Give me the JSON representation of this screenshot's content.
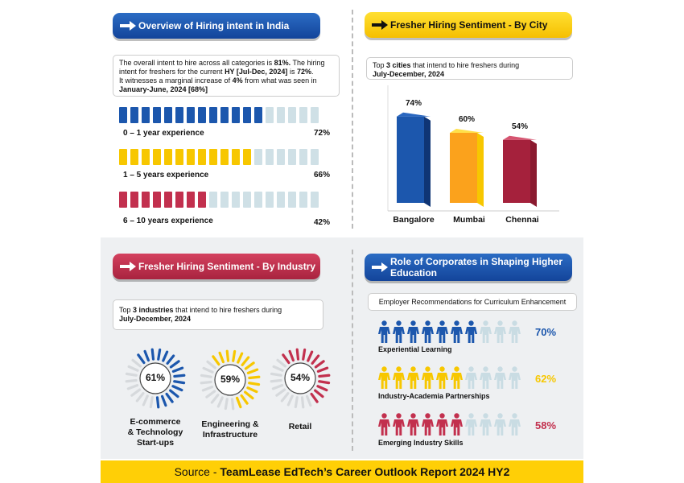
{
  "colors": {
    "blue": "#1c57ad",
    "yellow": "#f7c700",
    "red": "#c2304e",
    "orange": "#fba21c",
    "empty": "#cfe0e6"
  },
  "overview": {
    "title": "Overview of Hiring intent in India",
    "desc_line1_a": "The overall intent to hire across all categories is ",
    "desc_line1_b": "81%.",
    "desc_line1_c": " The hiring",
    "desc_line2_a": "intent for freshers for the current ",
    "desc_line2_b": "HY [Jul-Dec, 2024]",
    "desc_line2_c": " is ",
    "desc_line2_d": "72%",
    "desc_line2_e": ".",
    "desc_line3_a": "It witnesses a marginal increase of ",
    "desc_line3_b": "4%",
    "desc_line3_c": " from what was seen in",
    "desc_line4": "January-June, 2024 [68%]",
    "rows": [
      {
        "label": "0 – 1 year experience",
        "value": 72,
        "value_label": "72%",
        "filled": 13,
        "color": "#1c57ad"
      },
      {
        "label": "1 – 5 years experience",
        "value": 66,
        "value_label": "66%",
        "filled": 12,
        "color": "#f7c700"
      },
      {
        "label": "6 – 10 years experience",
        "value": 42,
        "value_label": "42%",
        "filled": 8,
        "color": "#c2304e"
      }
    ]
  },
  "city": {
    "title": "Fresher Hiring Sentiment - By City",
    "desc_a": "Top ",
    "desc_b": "3 cities",
    "desc_c": " that intend to hire freshers during",
    "desc_line2": "July-December, 2024"
  },
  "industry": {
    "title": "Fresher Hiring Sentiment - By Industry",
    "desc_a": "Top ",
    "desc_b": "3 industries",
    "desc_c": " that intend to hire freshers during",
    "desc_line2": "July-December, 2024",
    "items": [
      {
        "line1": "E-commerce",
        "line2": "& Technology",
        "line3": "Start-ups",
        "value": 61,
        "value_label": "61%",
        "color": "#1c57ad"
      },
      {
        "line1": "Engineering &",
        "line2": "Infrastructure",
        "line3": "",
        "value": 59,
        "value_label": "59%",
        "color": "#f7c700"
      },
      {
        "line1": "Retail",
        "line2": "",
        "line3": "",
        "value": 54,
        "value_label": "54%",
        "color": "#c2304e"
      }
    ]
  },
  "corporates": {
    "title_line1": "Role of Corporates in Shaping Higher",
    "title_line2": "Education",
    "subtitle": "Employer Recommendations for Curriculum Enhancement",
    "items": [
      {
        "label": "Experiential Learning",
        "value": 70,
        "value_label": "70%",
        "filled": 7,
        "color": "#1c57ad"
      },
      {
        "label": "Industry-Academia Partnerships",
        "value": 62,
        "value_label": "62%",
        "filled": 6,
        "color": "#f7c700"
      },
      {
        "label": "Emerging Industry Skills",
        "value": 58,
        "value_label": "58%",
        "filled": 6,
        "color": "#c2304e"
      }
    ]
  },
  "footer": {
    "prefix": "Source - ",
    "bold": "TeamLease EdTech’s Career Outlook Report 2024 HY2"
  },
  "chart_data": [
    {
      "type": "bar",
      "title": "Overview of Hiring intent in India",
      "categories": [
        "0 – 1 year experience",
        "1 – 5 years experience",
        "6 – 10 years experience"
      ],
      "values": [
        72,
        66,
        42
      ],
      "ylim": [
        0,
        100
      ]
    },
    {
      "type": "bar",
      "title": "Fresher Hiring Sentiment - By City",
      "categories": [
        "Bangalore",
        "Mumbai",
        "Chennai"
      ],
      "values": [
        74,
        60,
        54
      ],
      "value_labels": [
        "74%",
        "60%",
        "54%"
      ],
      "ylim": [
        0,
        100
      ]
    },
    {
      "type": "pie",
      "title": "Fresher Hiring Sentiment - By Industry",
      "categories": [
        "E-commerce & Technology Start-ups",
        "Engineering & Infrastructure",
        "Retail"
      ],
      "values": [
        61,
        59,
        54
      ]
    },
    {
      "type": "bar",
      "title": "Role of Corporates in Shaping Higher Education",
      "categories": [
        "Experiential Learning",
        "Industry-Academia Partnerships",
        "Emerging Industry Skills"
      ],
      "values": [
        70,
        62,
        58
      ],
      "ylim": [
        0,
        100
      ]
    }
  ]
}
